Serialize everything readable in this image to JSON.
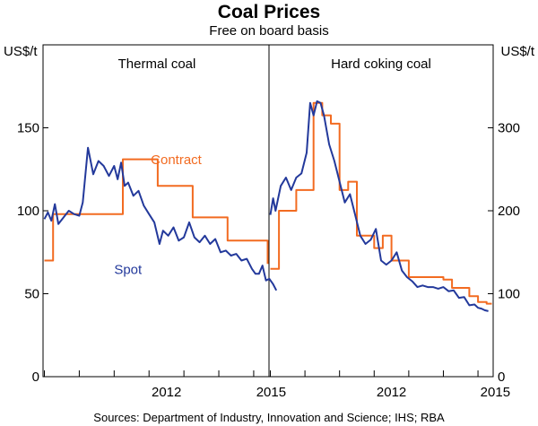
{
  "chart_data": {
    "type": "line",
    "title": "Coal Prices",
    "subtitle": "Free on board basis",
    "source": "Sources:   Department of Industry, Innovation and Science; IHS; RBA",
    "panels": [
      {
        "name": "Thermal coal",
        "unit": "US$/t",
        "axis_side": "left",
        "ylim": [
          0,
          200
        ],
        "yticks": [
          0,
          50,
          100,
          150
        ],
        "xlim": [
          2009.0,
          2015.4
        ],
        "xticks": [
          2012,
          2015
        ],
        "x_year_markers": [
          2009,
          2010,
          2011,
          2012,
          2013,
          2014,
          2015
        ],
        "series": [
          {
            "name": "Contract",
            "color": "#f26b21",
            "step": true,
            "x": [
              2009.0,
              2009.25,
              2010.25,
              2011.25,
              2012.25,
              2013.25,
              2014.25,
              2015.4
            ],
            "y": [
              70,
              98,
              98,
              131,
              115,
              96,
              82,
              68
            ]
          },
          {
            "name": "Spot",
            "color": "#23399b",
            "step": false,
            "x": [
              2009.0,
              2009.1,
              2009.2,
              2009.3,
              2009.4,
              2009.55,
              2009.7,
              2009.85,
              2010.0,
              2010.1,
              2010.25,
              2010.4,
              2010.55,
              2010.7,
              2010.85,
              2011.0,
              2011.1,
              2011.2,
              2011.3,
              2011.4,
              2011.55,
              2011.7,
              2011.85,
              2012.0,
              2012.15,
              2012.3,
              2012.4,
              2012.55,
              2012.7,
              2012.85,
              2013.0,
              2013.15,
              2013.3,
              2013.45,
              2013.6,
              2013.75,
              2013.9,
              2014.05,
              2014.2,
              2014.35,
              2014.5,
              2014.65,
              2014.8,
              2014.95,
              2015.05,
              2015.15,
              2015.25,
              2015.35,
              2015.45,
              2015.55,
              2015.65
            ],
            "y": [
              95,
              99,
              94,
              104,
              92,
              96,
              100,
              98,
              97,
              105,
              138,
              122,
              130,
              127,
              121,
              127,
              119,
              129,
              115,
              117,
              109,
              112,
              103,
              98,
              93,
              80,
              88,
              85,
              90,
              82,
              84,
              93,
              84,
              81,
              85,
              80,
              83,
              75,
              76,
              73,
              74,
              70,
              71,
              65,
              62,
              62,
              67,
              58,
              59,
              56,
              52
            ]
          }
        ],
        "annotations": [
          {
            "text": "Contract",
            "series": "Contract",
            "x": 2012.05,
            "y": 128
          },
          {
            "text": "Spot",
            "series": "Spot",
            "x": 2011.0,
            "y": 62
          }
        ]
      },
      {
        "name": "Hard coking coal",
        "unit": "US$/t",
        "axis_side": "right",
        "ylim": [
          0,
          400
        ],
        "yticks": [
          0,
          100,
          200,
          300
        ],
        "xlim": [
          2009.0,
          2015.4
        ],
        "xticks": [
          2012,
          2015
        ],
        "x_year_markers": [
          2009,
          2010,
          2011,
          2012,
          2013,
          2014,
          2015
        ],
        "series": [
          {
            "name": "Contract",
            "color": "#f26b21",
            "step": true,
            "x": [
              2009.0,
              2009.25,
              2009.5,
              2009.75,
              2010.0,
              2010.25,
              2010.5,
              2010.75,
              2011.0,
              2011.25,
              2011.5,
              2011.75,
              2012.0,
              2012.25,
              2012.5,
              2012.75,
              2013.0,
              2013.25,
              2013.5,
              2013.75,
              2014.0,
              2014.25,
              2014.5,
              2014.75,
              2015.0,
              2015.25,
              2015.4
            ],
            "y": [
              130,
              200,
              200,
              225,
              225,
              330,
              315,
              305,
              225,
              235,
              170,
              170,
              155,
              170,
              140,
              140,
              120,
              120,
              120,
              120,
              117,
              107,
              107,
              97,
              90,
              88,
              88
            ]
          },
          {
            "name": "Spot",
            "color": "#23399b",
            "step": false,
            "x": [
              2009.0,
              2009.08,
              2009.15,
              2009.3,
              2009.45,
              2009.6,
              2009.75,
              2009.9,
              2010.05,
              2010.15,
              2010.25,
              2010.35,
              2010.45,
              2010.55,
              2010.7,
              2010.85,
              2011.0,
              2011.15,
              2011.3,
              2011.45,
              2011.6,
              2011.75,
              2011.9,
              2012.05,
              2012.2,
              2012.35,
              2012.5,
              2012.65,
              2012.8,
              2012.95,
              2013.1,
              2013.25,
              2013.4,
              2013.55,
              2013.7,
              2013.85,
              2014.0,
              2014.15,
              2014.3,
              2014.45,
              2014.6,
              2014.75,
              2014.9,
              2015.0,
              2015.1,
              2015.2,
              2015.3
            ],
            "y": [
              195,
              215,
              200,
              230,
              240,
              225,
              240,
              245,
              270,
              330,
              315,
              332,
              330,
              315,
              280,
              260,
              235,
              210,
              220,
              195,
              170,
              160,
              165,
              178,
              140,
              135,
              140,
              150,
              128,
              120,
              115,
              108,
              110,
              108,
              108,
              106,
              108,
              103,
              104,
              95,
              96,
              86,
              87,
              83,
              82,
              80,
              79
            ]
          }
        ],
        "annotations": []
      }
    ],
    "grid": false,
    "legend": "none"
  }
}
